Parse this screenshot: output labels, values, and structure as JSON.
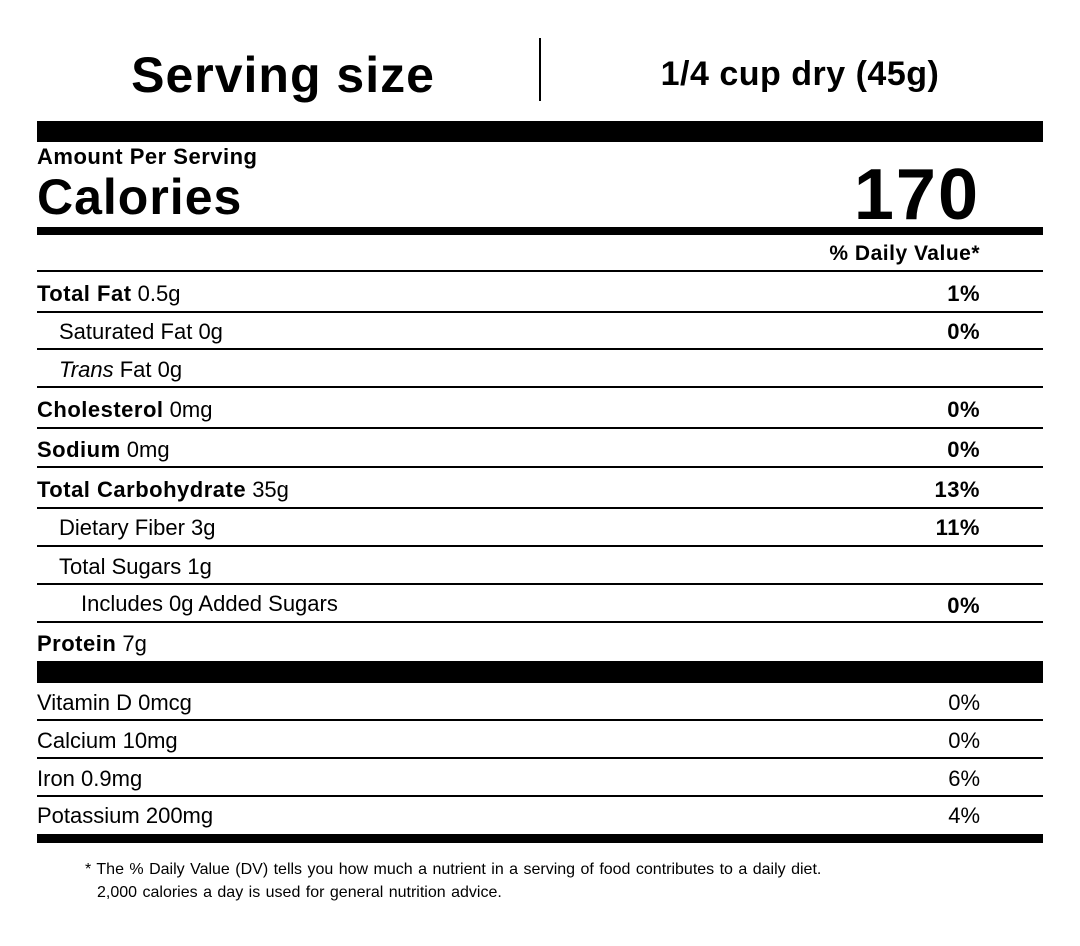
{
  "serving": {
    "label": "Serving size",
    "value": "1/4 cup dry (45g)"
  },
  "amount_per_serving": "Amount Per Serving",
  "calories": {
    "label": "Calories",
    "value": 170
  },
  "daily_value_header": "% Daily Value*",
  "nutrients": [
    {
      "name": "Total Fat",
      "amount": "0.5g",
      "dv": "1%"
    },
    {
      "name": "Saturated Fat",
      "amount": "0g",
      "dv": "0%"
    },
    {
      "name_italic": "Trans",
      "name": "Fat",
      "amount": "0g"
    },
    {
      "name": "Cholesterol",
      "amount": "0mg",
      "dv": "0%"
    },
    {
      "name": "Sodium",
      "amount": "0mg",
      "dv": "0%"
    },
    {
      "name": "Total Carbohydrate",
      "amount": "35g",
      "dv": "13%"
    },
    {
      "name": "Dietary Fiber",
      "amount": "3g",
      "dv": "11%"
    },
    {
      "name": "Total Sugars",
      "amount": "1g"
    },
    {
      "name": "Includes 0g Added Sugars",
      "dv": "0%"
    },
    {
      "name": "Protein",
      "amount": "7g"
    }
  ],
  "vitamins": [
    {
      "name": "Vitamin D",
      "amount": "0mcg",
      "dv": "0%"
    },
    {
      "name": "Calcium",
      "amount": "10mg",
      "dv": "0%"
    },
    {
      "name": "Iron",
      "amount": "0.9mg",
      "dv": "6%"
    },
    {
      "name": "Potassium",
      "amount": "200mg",
      "dv": "4%"
    }
  ],
  "footnote": {
    "marker": "*",
    "lines": [
      "The % Daily Value (DV) tells you how much a nutrient in a serving of food contributes to a daily diet.",
      "2,000 calories a day is used for general nutrition advice."
    ]
  }
}
